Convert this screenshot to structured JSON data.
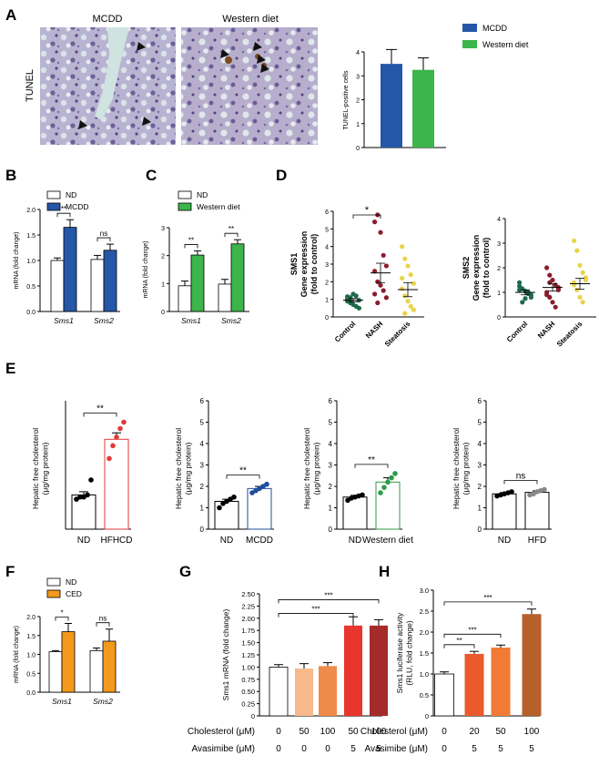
{
  "panels": {
    "A": {
      "letter": "A",
      "img_left_title": "MCDD",
      "img_right_title": "Western diet",
      "side_label": "TUNEL"
    },
    "B": {
      "letter": "B"
    },
    "C": {
      "letter": "C"
    },
    "D": {
      "letter": "D"
    },
    "E": {
      "letter": "E"
    },
    "F": {
      "letter": "F"
    },
    "G": {
      "letter": "G"
    },
    "H": {
      "letter": "H"
    }
  },
  "colors": {
    "mcdd": "#2457a8",
    "western": "#3cb54a",
    "ced": "#f39a1d",
    "hfhcd": "#e03a3a",
    "navy": "#1e4d9a",
    "green": "#2e9a47",
    "gray": "#888888",
    "black": "#000000",
    "darkgreen": "#1f6b4c",
    "maroon": "#8b1c2c",
    "yellow": "#e8d44a",
    "g_bars": [
      "#ffffff",
      "#f7b98c",
      "#f08a4a",
      "#e8352e",
      "#a52a2a"
    ],
    "h_bars": [
      "#ffffff",
      "#ea5a2a",
      "#f07a36",
      "#b6602a"
    ]
  },
  "chart_data": [
    {
      "id": "A",
      "type": "bar",
      "categories": [
        "MCDD",
        "Western diet"
      ],
      "values": [
        3.5,
        3.25
      ],
      "errors": [
        0.6,
        0.5
      ],
      "ylabel": "TUNEL-positive cells",
      "ylim": [
        0,
        4
      ],
      "yticks": [
        "0",
        "1",
        "2",
        "3",
        "4"
      ],
      "legend": [
        "MCDD",
        "Western diet"
      ],
      "legend_position": "top-right"
    },
    {
      "id": "B",
      "type": "bar",
      "categories": [
        "Sms1",
        "Sms2"
      ],
      "series": [
        {
          "name": "ND",
          "values": [
            1.0,
            1.02
          ],
          "errors": [
            0.05,
            0.08
          ]
        },
        {
          "name": "MCDD",
          "values": [
            1.65,
            1.2
          ],
          "errors": [
            0.15,
            0.12
          ]
        }
      ],
      "ylabel": "mRNA (fold change)",
      "ylim": [
        0,
        2.0
      ],
      "yticks": [
        "0.0",
        "0.5",
        "1.0",
        "1.5",
        "2.0"
      ],
      "significance": [
        "**",
        "ns"
      ],
      "legend_position": "top"
    },
    {
      "id": "C",
      "type": "bar",
      "categories": [
        "Sms1",
        "Sms2"
      ],
      "series": [
        {
          "name": "ND",
          "values": [
            0.92,
            0.98
          ],
          "errors": [
            0.17,
            0.17
          ]
        },
        {
          "name": "Western diet",
          "values": [
            2.02,
            2.42
          ],
          "errors": [
            0.15,
            0.15
          ]
        }
      ],
      "ylabel": "mRNA (fold change)",
      "ylim": [
        0,
        3
      ],
      "yticks": [
        "0",
        "1",
        "2",
        "3"
      ],
      "significance": [
        "**",
        "**"
      ],
      "legend_position": "top"
    },
    {
      "id": "D1",
      "type": "scatter",
      "categories": [
        "Control",
        "NASH",
        "Steatosis"
      ],
      "points": [
        [
          0.9,
          1.1,
          0.7,
          1.2,
          0.5,
          1.0,
          0.8,
          1.3,
          0.6,
          0.95,
          1.15,
          0.85
        ],
        [
          5.4,
          5.8,
          4.8,
          3.5,
          2.9,
          2.6,
          2.0,
          1.8,
          1.5,
          1.1,
          1.3,
          0.8
        ],
        [
          4.0,
          3.3,
          2.9,
          2.4,
          1.9,
          1.6,
          1.2,
          0.9,
          0.6,
          0.4,
          2.2,
          0.2
        ]
      ],
      "means": [
        0.95,
        2.5,
        1.55
      ],
      "sems": [
        0.1,
        0.55,
        0.4
      ],
      "ylabel": "SMS1 Gene expression (fold to control)",
      "ylim": [
        0,
        6
      ],
      "yticks": [
        "0",
        "1",
        "2",
        "3",
        "4",
        "5",
        "6"
      ],
      "significance": [
        "*"
      ]
    },
    {
      "id": "D2",
      "type": "scatter",
      "categories": [
        "Control",
        "NASH",
        "Steatosis"
      ],
      "points": [
        [
          1.4,
          1.15,
          1.05,
          0.95,
          0.8,
          1.25,
          0.6,
          0.75,
          1.0,
          0.9,
          1.1
        ],
        [
          2.0,
          1.7,
          1.5,
          1.3,
          1.2,
          1.0,
          0.8,
          0.6,
          0.4,
          1.1,
          0.9,
          1.4
        ],
        [
          3.1,
          2.7,
          2.1,
          1.8,
          1.5,
          1.3,
          1.1,
          0.8,
          0.6,
          1.6,
          1.4
        ]
      ],
      "means": [
        1.0,
        1.2,
        1.35
      ],
      "sems": [
        0.1,
        0.15,
        0.22
      ],
      "ylabel": "SMS2 Gene expression (fold to control)",
      "ylim": [
        0,
        4
      ],
      "yticks": [
        "0",
        "1",
        "2",
        "3",
        "4"
      ]
    },
    {
      "id": "E1",
      "type": "bar",
      "categories": [
        "ND",
        "HFHCD"
      ],
      "values": [
        1.6,
        4.2
      ],
      "errors": [
        0.15,
        0.3
      ],
      "points": [
        [
          1.4,
          1.5,
          1.5,
          1.6,
          2.3
        ],
        [
          3.3,
          3.9,
          4.3,
          4.7,
          5.0
        ]
      ],
      "ylabel": "Hepatic free cholesterol (μg/mg protein)",
      "ylim": [
        0,
        6
      ],
      "yticks": [],
      "significance": [
        "**"
      ]
    },
    {
      "id": "E2",
      "type": "bar",
      "categories": [
        "ND",
        "MCDD"
      ],
      "values": [
        1.3,
        1.9
      ],
      "errors": [
        0.1,
        0.1
      ],
      "points": [
        [
          1.0,
          1.2,
          1.3,
          1.4,
          1.5
        ],
        [
          1.7,
          1.8,
          1.9,
          2.0,
          2.1
        ]
      ],
      "ylabel": "Hepatic free cholesterol (μg/mg protein)",
      "ylim": [
        0,
        6
      ],
      "yticks": [
        "0",
        "1",
        "2",
        "3",
        "4",
        "5",
        "6"
      ],
      "significance": [
        "**"
      ]
    },
    {
      "id": "E3",
      "type": "bar",
      "categories": [
        "ND",
        "Western diet"
      ],
      "values": [
        1.5,
        2.2
      ],
      "errors": [
        0.08,
        0.2
      ],
      "points": [
        [
          1.35,
          1.45,
          1.5,
          1.55,
          1.6
        ],
        [
          1.7,
          1.95,
          2.2,
          2.4,
          2.6
        ]
      ],
      "ylabel": "Hepatic free cholesterol (μg/mg protein)",
      "ylim": [
        0,
        6
      ],
      "yticks": [
        "0",
        "1",
        "2",
        "3",
        "4",
        "5",
        "6"
      ],
      "significance": [
        "**"
      ]
    },
    {
      "id": "E4",
      "type": "bar",
      "categories": [
        "ND",
        "HFD"
      ],
      "values": [
        1.65,
        1.72
      ],
      "errors": [
        0.06,
        0.07
      ],
      "points": [
        [
          1.55,
          1.6,
          1.65,
          1.7,
          1.75
        ],
        [
          1.6,
          1.65,
          1.75,
          1.8,
          1.85
        ]
      ],
      "ylabel": "Hepatic free cholesterol (μg/mg protein)",
      "ylim": [
        0,
        6
      ],
      "yticks": [
        "0",
        "1",
        "2",
        "3",
        "4",
        "5",
        "6"
      ],
      "significance": [
        "ns"
      ]
    },
    {
      "id": "F",
      "type": "bar",
      "categories": [
        "Sms1",
        "Sms2"
      ],
      "series": [
        {
          "name": "ND",
          "values": [
            1.07,
            1.1
          ],
          "errors": [
            0.03,
            0.07
          ]
        },
        {
          "name": "CED",
          "values": [
            1.6,
            1.35
          ],
          "errors": [
            0.22,
            0.32
          ]
        }
      ],
      "ylabel": "mRNA (fold change)",
      "ylim": [
        0,
        2.0
      ],
      "yticks": [
        "0.0",
        "0.5",
        "1.0",
        "1.5",
        "2.0"
      ],
      "significance": [
        "*",
        "ns"
      ],
      "legend_position": "top"
    },
    {
      "id": "G",
      "type": "bar",
      "values": [
        1.0,
        0.97,
        1.02,
        1.85,
        1.85
      ],
      "errors": [
        0.05,
        0.1,
        0.07,
        0.18,
        0.12
      ],
      "ylabel": "Sms1 mRNA (fold change)",
      "ylim": [
        0,
        2.5
      ],
      "yticks": [
        "0",
        "0.25",
        "0.50",
        "0.75",
        "1.00",
        "1.25",
        "1.50",
        "1.75",
        "2.00",
        "2.25",
        "2.50"
      ],
      "row_labels": [
        "Cholesterol (μM)",
        "Avasimibe (μM)"
      ],
      "rows": [
        [
          "0",
          "50",
          "100",
          "50",
          "100"
        ],
        [
          "0",
          "0",
          "0",
          "5",
          "5"
        ]
      ],
      "significance": [
        "***",
        "***"
      ]
    },
    {
      "id": "H",
      "type": "bar",
      "values": [
        1.0,
        1.48,
        1.63,
        2.43
      ],
      "errors": [
        0.05,
        0.06,
        0.06,
        0.12
      ],
      "ylabel": "Sms1 luciferase activity (RLU, fold change)",
      "ylim": [
        0,
        3.0
      ],
      "yticks": [
        "0",
        "0.5",
        "1.0",
        "1.5",
        "2.0",
        "2.5",
        "3.0"
      ],
      "row_labels": [
        "Cholesterol (μM)",
        "Avasimibe (μM)"
      ],
      "rows": [
        [
          "0",
          "20",
          "50",
          "100"
        ],
        [
          "0",
          "5",
          "5",
          "5"
        ]
      ],
      "significance": [
        "**",
        "***",
        "***"
      ]
    }
  ]
}
